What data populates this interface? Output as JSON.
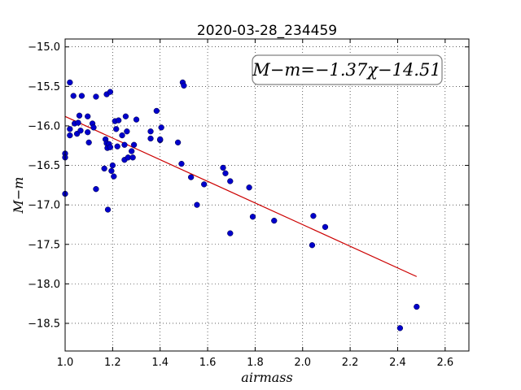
{
  "chart_data": {
    "type": "scatter",
    "title": "2020-03-28_234459",
    "xlabel": "airmass",
    "ylabel": "M−m",
    "xlim": [
      1.0,
      2.7
    ],
    "ylim": [
      -18.85,
      -14.9
    ],
    "xticks": [
      1.0,
      1.2,
      1.4,
      1.6,
      1.8,
      2.0,
      2.2,
      2.4,
      2.6
    ],
    "xtick_labels": [
      "1.0",
      "1.2",
      "1.4",
      "1.6",
      "1.8",
      "2.0",
      "2.2",
      "2.4",
      "2.6"
    ],
    "yticks": [
      -15.0,
      -15.5,
      -16.0,
      -16.5,
      -17.0,
      -17.5,
      -18.0,
      -18.5
    ],
    "ytick_labels": [
      "−15.0",
      "−15.5",
      "−16.0",
      "−16.5",
      "−17.0",
      "−17.5",
      "−18.0",
      "−18.5"
    ],
    "grid": true,
    "annotation": "M−m=−1.37χ−14.51",
    "fit": {
      "slope": -1.37,
      "intercept": -14.51,
      "x_range": [
        1.0,
        2.48
      ],
      "color": "#cc0000"
    },
    "marker_color": "#0000cc",
    "points": [
      [
        1.0,
        -16.35
      ],
      [
        1.0,
        -16.4
      ],
      [
        1.0,
        -16.86
      ],
      [
        1.02,
        -15.45
      ],
      [
        1.02,
        -16.04
      ],
      [
        1.02,
        -16.12
      ],
      [
        1.035,
        -15.62
      ],
      [
        1.04,
        -15.97
      ],
      [
        1.05,
        -16.1
      ],
      [
        1.055,
        -15.96
      ],
      [
        1.06,
        -15.87
      ],
      [
        1.065,
        -16.06
      ],
      [
        1.07,
        -15.62
      ],
      [
        1.095,
        -15.88
      ],
      [
        1.095,
        -16.08
      ],
      [
        1.1,
        -16.21
      ],
      [
        1.115,
        -15.97
      ],
      [
        1.12,
        -16.02
      ],
      [
        1.13,
        -15.63
      ],
      [
        1.13,
        -16.8
      ],
      [
        1.165,
        -16.54
      ],
      [
        1.17,
        -16.17
      ],
      [
        1.175,
        -15.6
      ],
      [
        1.175,
        -16.22
      ],
      [
        1.178,
        -16.28
      ],
      [
        1.18,
        -17.06
      ],
      [
        1.185,
        -16.23
      ],
      [
        1.19,
        -15.57
      ],
      [
        1.19,
        -16.27
      ],
      [
        1.195,
        -16.57
      ],
      [
        1.2,
        -16.5
      ],
      [
        1.205,
        -16.64
      ],
      [
        1.21,
        -15.94
      ],
      [
        1.215,
        -16.04
      ],
      [
        1.22,
        -16.26
      ],
      [
        1.225,
        -15.93
      ],
      [
        1.24,
        -16.12
      ],
      [
        1.25,
        -16.43
      ],
      [
        1.25,
        -16.24
      ],
      [
        1.255,
        -15.88
      ],
      [
        1.26,
        -16.07
      ],
      [
        1.265,
        -16.4
      ],
      [
        1.28,
        -16.32
      ],
      [
        1.285,
        -16.4
      ],
      [
        1.29,
        -16.24
      ],
      [
        1.3,
        -15.92
      ],
      [
        1.36,
        -16.07
      ],
      [
        1.36,
        -16.16
      ],
      [
        1.385,
        -15.81
      ],
      [
        1.4,
        -16.18
      ],
      [
        1.4,
        -16.17
      ],
      [
        1.405,
        -16.02
      ],
      [
        1.475,
        -16.21
      ],
      [
        1.49,
        -16.48
      ],
      [
        1.495,
        -15.45
      ],
      [
        1.5,
        -15.49
      ],
      [
        1.53,
        -16.65
      ],
      [
        1.555,
        -17.0
      ],
      [
        1.585,
        -16.74
      ],
      [
        1.665,
        -16.53
      ],
      [
        1.675,
        -16.6
      ],
      [
        1.695,
        -16.7
      ],
      [
        1.695,
        -17.36
      ],
      [
        1.775,
        -16.78
      ],
      [
        1.79,
        -17.15
      ],
      [
        1.88,
        -17.2
      ],
      [
        2.04,
        -17.51
      ],
      [
        2.045,
        -17.14
      ],
      [
        2.095,
        -17.28
      ],
      [
        2.41,
        -18.56
      ],
      [
        2.48,
        -18.29
      ]
    ]
  }
}
